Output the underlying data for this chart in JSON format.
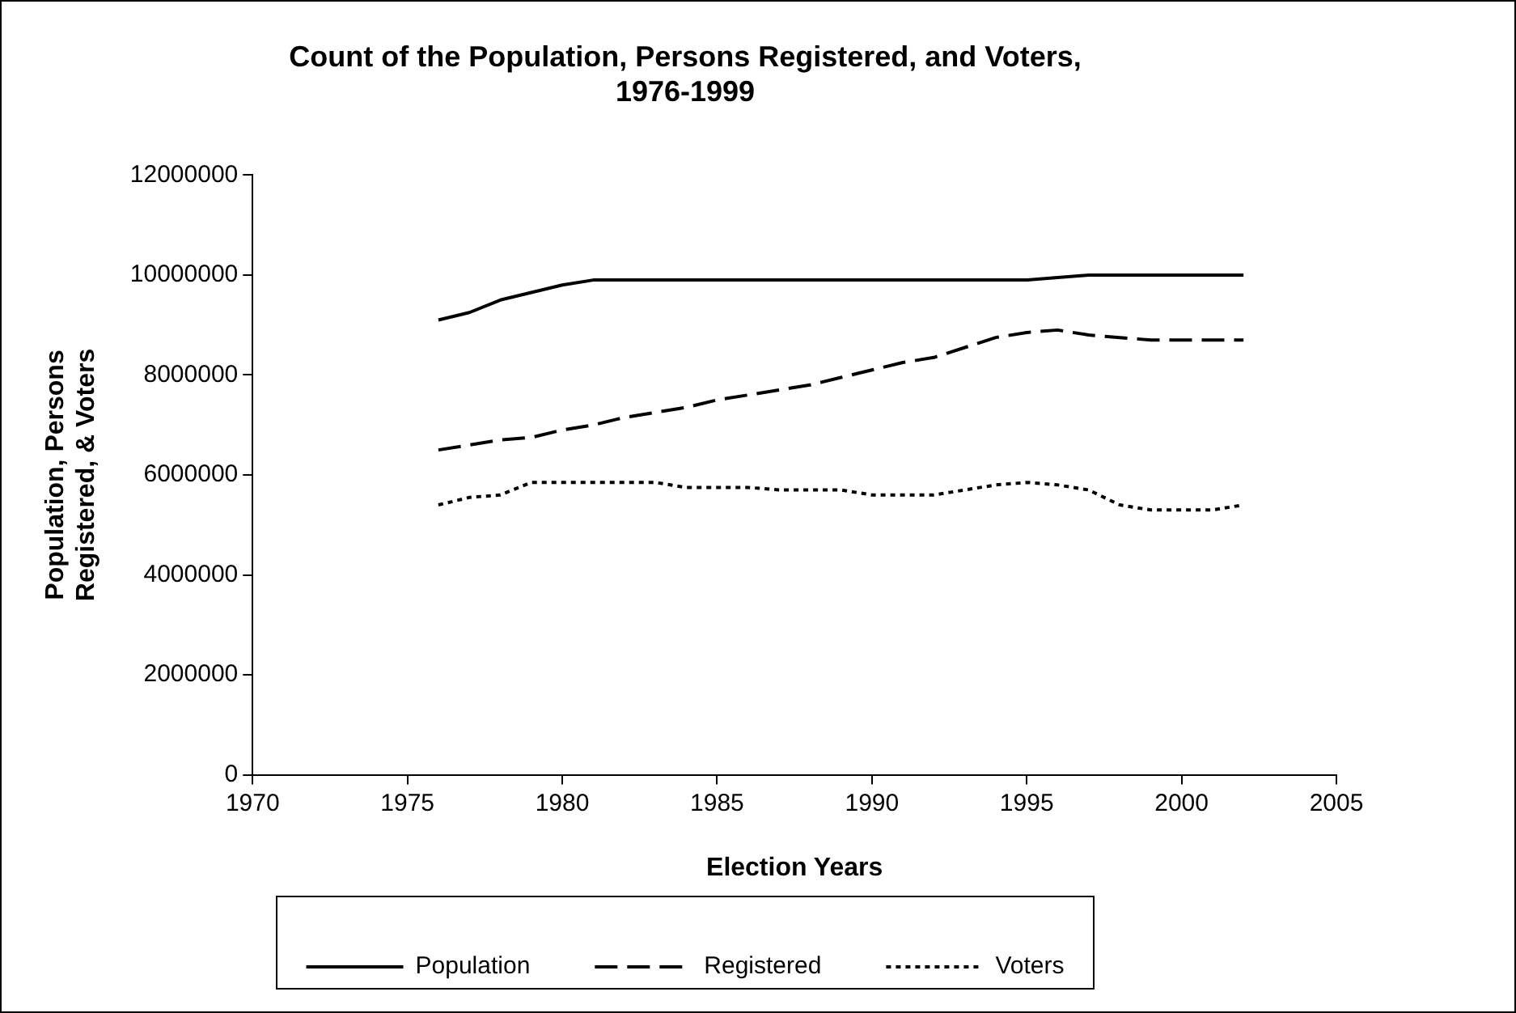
{
  "chart_data": {
    "type": "line",
    "title": [
      "Count of the Population, Persons Registered, and Voters,",
      "1976-1999"
    ],
    "xlabel": "Election Years",
    "ylabel": [
      "Population, Persons",
      "Registered, & Voters"
    ],
    "x": [
      1976,
      1977,
      1978,
      1979,
      1980,
      1981,
      1982,
      1983,
      1984,
      1985,
      1986,
      1987,
      1988,
      1989,
      1990,
      1991,
      1992,
      1993,
      1994,
      1995,
      1996,
      1997,
      1998,
      1999,
      2000,
      2001,
      2002
    ],
    "series": [
      {
        "name": "Population",
        "color": "#000000",
        "line_style": "solid",
        "values": [
          9100000,
          9250000,
          9500000,
          9650000,
          9800000,
          9900000,
          9900000,
          9900000,
          9900000,
          9900000,
          9900000,
          9900000,
          9900000,
          9900000,
          9900000,
          9900000,
          9900000,
          9900000,
          9900000,
          9900000,
          9950000,
          10000000,
          10000000,
          10000000,
          10000000,
          10000000,
          10000000
        ]
      },
      {
        "name": "Registered",
        "color": "#000000",
        "line_style": "dashed",
        "values": [
          6500000,
          6600000,
          6700000,
          6750000,
          6900000,
          7000000,
          7150000,
          7250000,
          7350000,
          7500000,
          7600000,
          7700000,
          7800000,
          7950000,
          8100000,
          8250000,
          8350000,
          8550000,
          8750000,
          8850000,
          8900000,
          8800000,
          8750000,
          8700000,
          8700000,
          8700000,
          8700000
        ]
      },
      {
        "name": "Voters",
        "color": "#000000",
        "line_style": "dotted",
        "values": [
          5400000,
          5550000,
          5600000,
          5850000,
          5850000,
          5850000,
          5850000,
          5850000,
          5750000,
          5750000,
          5750000,
          5700000,
          5700000,
          5700000,
          5600000,
          5600000,
          5600000,
          5700000,
          5800000,
          5850000,
          5800000,
          5700000,
          5400000,
          5300000,
          5300000,
          5300000,
          5400000
        ]
      }
    ],
    "xlim": [
      1970,
      2005
    ],
    "xticks": [
      1970,
      1975,
      1980,
      1985,
      1990,
      1995,
      2000,
      2005
    ],
    "ylim": [
      0,
      12000000
    ],
    "yticks": [
      0,
      2000000,
      4000000,
      6000000,
      8000000,
      10000000,
      12000000
    ],
    "grid": false,
    "legend": "bottom",
    "marker": "none"
  }
}
